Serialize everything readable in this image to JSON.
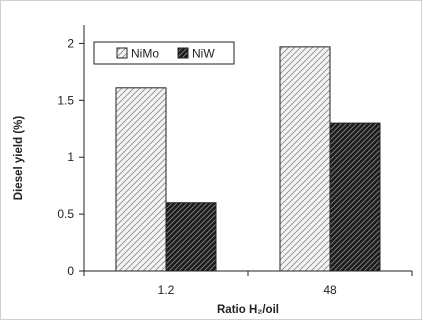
{
  "chart_data": {
    "type": "bar",
    "categories": [
      "1.2",
      "48"
    ],
    "series": [
      {
        "name": "NiMo",
        "values": [
          1.61,
          1.97
        ]
      },
      {
        "name": "NiW",
        "values": [
          0.6,
          1.3
        ]
      }
    ],
    "xlabel": "Ratio H₂/oil",
    "ylabel": "Diesel yield (%)",
    "ylim": [
      0,
      2.25
    ],
    "yticks": [
      "0",
      "0.5",
      "1",
      "1.5",
      "2"
    ],
    "ytick_values": [
      0,
      0.5,
      1,
      1.5,
      2
    ],
    "grid": false,
    "legend_position": "top-left",
    "series_colors": [
      "#f4f4f4",
      "#1c1c1c"
    ]
  }
}
